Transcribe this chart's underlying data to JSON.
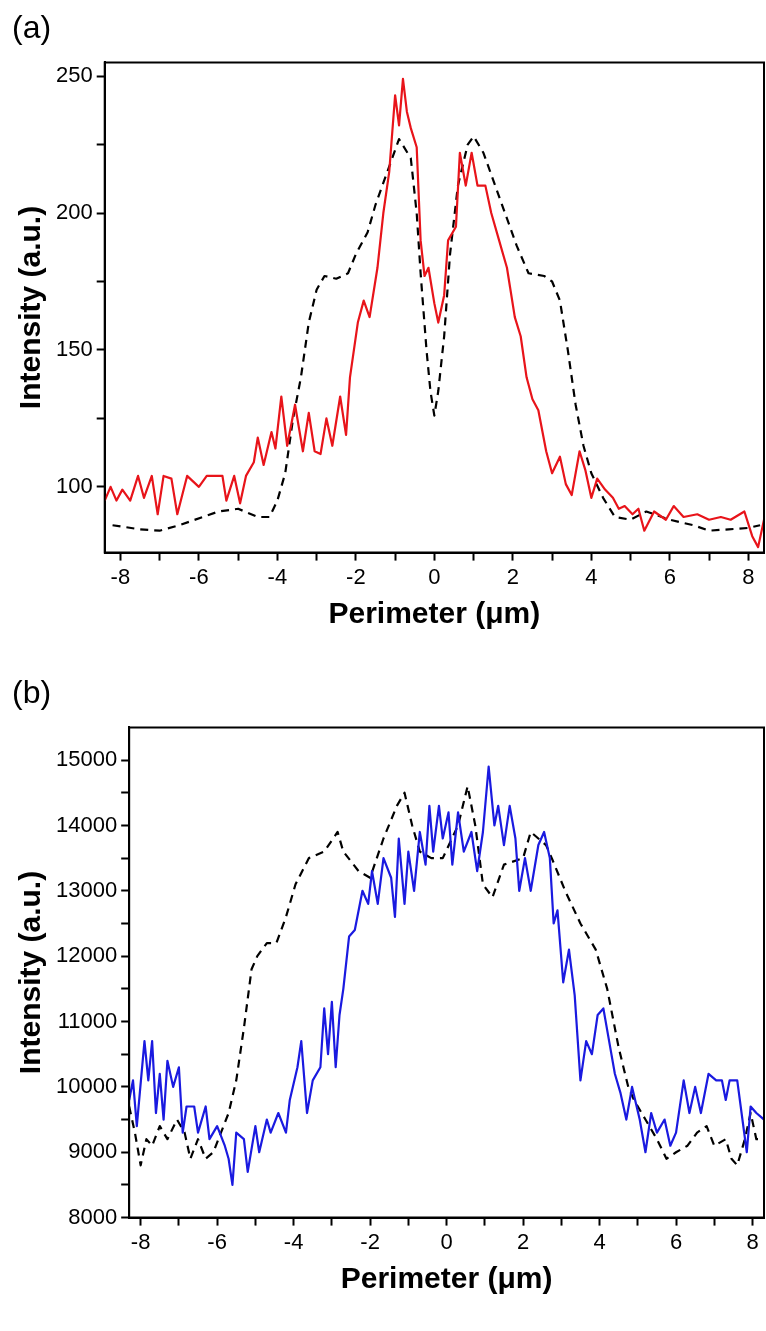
{
  "chart_data": [
    {
      "type": "line",
      "title": "(a)",
      "xlabel": "Perimeter (μm)",
      "ylabel": "Intensity (a.u.)",
      "xlim": [
        -8.4,
        8.4
      ],
      "ylim": [
        76,
        255
      ],
      "xticks": [
        -8,
        {
          "value": -7,
          "label": null
        },
        -6,
        {
          "value": -5,
          "label": null
        },
        -4,
        {
          "value": -3,
          "label": null
        },
        -2,
        {
          "value": -1,
          "label": null
        },
        0,
        {
          "value": 1,
          "label": null
        },
        2,
        {
          "value": 3,
          "label": null
        },
        4,
        {
          "value": 5,
          "label": null
        },
        6,
        {
          "value": 7,
          "label": null
        },
        8
      ],
      "yticks": [
        100,
        {
          "value": 125,
          "label": null
        },
        150,
        {
          "value": 175,
          "label": null
        },
        200,
        {
          "value": 225,
          "label": null
        },
        250
      ],
      "grid": false,
      "legend": false,
      "marker": "none",
      "series": [
        {
          "color": "#e8141a",
          "line_style": "solid",
          "x": [
            -8.4,
            -8.25,
            -8.1,
            -7.95,
            -7.75,
            -7.55,
            -7.4,
            -7.2,
            -7.05,
            -6.9,
            -6.7,
            -6.55,
            -6.3,
            -6.0,
            -5.8,
            -5.4,
            -5.3,
            -5.1,
            -4.95,
            -4.8,
            -4.6,
            -4.5,
            -4.35,
            -4.15,
            -4.05,
            -3.9,
            -3.75,
            -3.55,
            -3.35,
            -3.2,
            -3.05,
            -2.9,
            -2.75,
            -2.6,
            -2.4,
            -2.25,
            -2.15,
            -1.95,
            -1.8,
            -1.65,
            -1.45,
            -1.3,
            -1.15,
            -1.0,
            -0.9,
            -0.8,
            -0.7,
            -0.6,
            -0.45,
            -0.35,
            -0.25,
            -0.15,
            0.0,
            0.1,
            0.25,
            0.35,
            0.55,
            0.65,
            0.8,
            0.95,
            1.1,
            1.3,
            1.45,
            1.65,
            1.85,
            2.05,
            2.2,
            2.35,
            2.5,
            2.65,
            2.85,
            3.0,
            3.2,
            3.35,
            3.5,
            3.7,
            3.85,
            4.0,
            4.15,
            4.35,
            4.55,
            4.7,
            4.85,
            5.05,
            5.2,
            5.35,
            5.6,
            5.9,
            6.1,
            6.35,
            6.7,
            7.0,
            7.3,
            7.55,
            7.9,
            8.1,
            8.25,
            8.4
          ],
          "values": [
            95,
            100,
            95,
            99,
            95,
            104,
            96,
            104,
            90,
            104,
            103,
            90,
            104,
            100,
            104,
            104,
            95,
            104,
            94,
            104,
            109,
            118,
            108,
            120,
            114,
            133,
            115,
            130,
            113,
            127,
            113,
            112,
            125,
            115,
            133,
            119,
            140,
            160,
            168,
            162,
            180,
            200,
            215,
            243,
            232,
            249,
            237,
            231,
            224,
            190,
            177,
            180,
            167,
            160,
            170,
            190,
            195,
            222,
            210,
            222,
            210,
            210,
            200,
            190,
            180,
            162,
            155,
            140,
            132,
            128,
            113,
            105,
            111,
            101,
            97,
            113,
            106,
            96,
            103,
            99,
            96,
            92,
            93,
            90,
            92,
            84,
            91,
            88,
            93,
            89,
            90,
            88,
            89,
            88,
            91,
            82,
            78,
            88
          ]
        },
        {
          "color": "#000000",
          "line_style": "dashed",
          "x": [
            -8.2,
            -7.5,
            -7.0,
            -6.5,
            -5.5,
            -5.0,
            -4.5,
            -4.2,
            -4.0,
            -3.8,
            -3.6,
            -3.4,
            -3.2,
            -3.0,
            -2.8,
            -2.5,
            -2.2,
            -2.0,
            -1.7,
            -1.5,
            -1.2,
            -0.9,
            -0.6,
            -0.45,
            -0.35,
            -0.2,
            -0.1,
            0.0,
            0.1,
            0.25,
            0.4,
            0.6,
            0.85,
            1.0,
            1.25,
            1.5,
            1.8,
            2.1,
            2.4,
            2.8,
            3.0,
            3.2,
            3.4,
            3.6,
            3.8,
            4.0,
            4.3,
            4.6,
            5.0,
            5.4,
            6.0,
            6.6,
            7.0,
            7.5,
            8.0,
            8.3
          ],
          "values": [
            86,
            84.5,
            84,
            86,
            91,
            92,
            89,
            89,
            95,
            105,
            125,
            140,
            160,
            172,
            177,
            176,
            178,
            185,
            193,
            203,
            215,
            227,
            220,
            200,
            178,
            150,
            135,
            126,
            135,
            155,
            185,
            210,
            225,
            228,
            222,
            212,
            200,
            188,
            178,
            177,
            175,
            168,
            150,
            130,
            115,
            105,
            96,
            89,
            88,
            91,
            88,
            86,
            84,
            84.5,
            85,
            86
          ]
        }
      ]
    },
    {
      "type": "line",
      "title": "(b)",
      "xlabel": "Perimeter (μm)",
      "ylabel": "Intensity (a.u.)",
      "xlim": [
        -8.3,
        8.3
      ],
      "ylim": [
        8000,
        15500
      ],
      "xticks": [
        -8,
        {
          "value": -7,
          "label": null
        },
        -6,
        {
          "value": -5,
          "label": null
        },
        -4,
        {
          "value": -3,
          "label": null
        },
        -2,
        {
          "value": -1,
          "label": null
        },
        0,
        {
          "value": 1,
          "label": null
        },
        2,
        {
          "value": 3,
          "label": null
        },
        4,
        {
          "value": 5,
          "label": null
        },
        6,
        {
          "value": 7,
          "label": null
        },
        8
      ],
      "yticks": [
        8000,
        {
          "value": 8500,
          "label": null
        },
        9000,
        {
          "value": 9500,
          "label": null
        },
        10000,
        {
          "value": 10500,
          "label": null
        },
        11000,
        {
          "value": 11500,
          "label": null
        },
        12000,
        {
          "value": 12500,
          "label": null
        },
        13000,
        {
          "value": 13500,
          "label": null
        },
        14000,
        {
          "value": 14500,
          "label": null
        },
        15000
      ],
      "grid": false,
      "legend": false,
      "marker": "none",
      "series": [
        {
          "color": "#1a1ae0",
          "line_style": "solid",
          "x": [
            -8.3,
            -8.2,
            -8.1,
            -7.9,
            -7.8,
            -7.7,
            -7.6,
            -7.5,
            -7.4,
            -7.3,
            -7.15,
            -7.0,
            -6.9,
            -6.8,
            -6.6,
            -6.5,
            -6.3,
            -6.2,
            -6.0,
            -5.8,
            -5.7,
            -5.6,
            -5.5,
            -5.3,
            -5.2,
            -5.0,
            -4.9,
            -4.7,
            -4.6,
            -4.4,
            -4.2,
            -4.1,
            -3.9,
            -3.8,
            -3.65,
            -3.5,
            -3.3,
            -3.2,
            -3.1,
            -3.0,
            -2.9,
            -2.8,
            -2.7,
            -2.55,
            -2.4,
            -2.2,
            -2.05,
            -1.95,
            -1.8,
            -1.65,
            -1.45,
            -1.35,
            -1.25,
            -1.1,
            -1.0,
            -0.85,
            -0.7,
            -0.55,
            -0.45,
            -0.35,
            -0.2,
            -0.1,
            0.05,
            0.15,
            0.3,
            0.45,
            0.65,
            0.8,
            0.95,
            1.1,
            1.25,
            1.35,
            1.5,
            1.65,
            1.8,
            1.9,
            2.05,
            2.2,
            2.4,
            2.55,
            2.7,
            2.8,
            2.9,
            3.05,
            3.2,
            3.35,
            3.5,
            3.65,
            3.8,
            3.95,
            4.1,
            4.25,
            4.4,
            4.55,
            4.7,
            4.85,
            5.05,
            5.2,
            5.35,
            5.5,
            5.7,
            5.85,
            6.0,
            6.2,
            6.35,
            6.5,
            6.65,
            6.85,
            7.05,
            7.2,
            7.3,
            7.4,
            7.6,
            7.85,
            7.95,
            8.1,
            8.3
          ],
          "values": [
            9800,
            10100,
            9400,
            10700,
            10100,
            10700,
            9600,
            10200,
            9500,
            10400,
            10000,
            10300,
            9300,
            9700,
            9700,
            9300,
            9700,
            9200,
            9400,
            9100,
            8900,
            8500,
            9300,
            9200,
            8700,
            9400,
            9000,
            9500,
            9300,
            9600,
            9300,
            9800,
            10300,
            10700,
            9600,
            10100,
            10300,
            11200,
            10500,
            11300,
            10300,
            11100,
            11500,
            12300,
            12400,
            13000,
            12800,
            13300,
            12800,
            13500,
            13200,
            12600,
            13800,
            12800,
            13600,
            13000,
            13900,
            13400,
            14300,
            13600,
            14300,
            13800,
            14200,
            13400,
            14200,
            13600,
            13900,
            13300,
            13900,
            14900,
            14000,
            14300,
            13700,
            14300,
            13800,
            13000,
            13500,
            13000,
            13700,
            13900,
            13500,
            12500,
            12700,
            11600,
            12100,
            11400,
            10100,
            10700,
            10500,
            11100,
            11200,
            10700,
            10200,
            9900,
            9500,
            10000,
            9500,
            9000,
            9600,
            9300,
            9500,
            9100,
            9300,
            10100,
            9600,
            10000,
            9600,
            10200,
            10100,
            10100,
            9800,
            10100,
            10100,
            9000,
            9700,
            9600,
            9500
          ]
        },
        {
          "color": "#000000",
          "line_style": "dashed",
          "x": [
            -8.3,
            -8.15,
            -8.0,
            -7.85,
            -7.7,
            -7.5,
            -7.3,
            -7.05,
            -6.85,
            -6.7,
            -6.5,
            -6.3,
            -6.1,
            -5.9,
            -5.7,
            -5.5,
            -5.3,
            -5.1,
            -4.95,
            -4.7,
            -4.45,
            -4.2,
            -3.95,
            -3.6,
            -3.2,
            -2.85,
            -2.7,
            -2.3,
            -2.0,
            -1.65,
            -1.3,
            -1.1,
            -0.9,
            -0.7,
            -0.4,
            -0.1,
            0.3,
            0.55,
            0.75,
            0.95,
            1.2,
            1.5,
            2.0,
            2.2,
            2.6,
            2.75,
            3.1,
            3.5,
            3.9,
            4.2,
            4.5,
            4.75,
            4.9,
            5.2,
            5.5,
            5.75,
            6.0,
            6.3,
            6.55,
            6.8,
            7.0,
            7.3,
            7.45,
            7.6,
            7.8,
            7.95,
            8.1,
            8.3
          ],
          "values": [
            9700,
            9300,
            8800,
            9200,
            9100,
            9400,
            9200,
            9500,
            9300,
            8900,
            9200,
            8900,
            9000,
            9300,
            9600,
            10100,
            10900,
            11800,
            12000,
            12200,
            12200,
            12600,
            13100,
            13500,
            13600,
            13900,
            13600,
            13300,
            13200,
            13800,
            14300,
            14500,
            14000,
            13600,
            13500,
            13500,
            14000,
            14600,
            14000,
            13100,
            12900,
            13400,
            13500,
            13900,
            13700,
            13500,
            13000,
            12500,
            12100,
            11500,
            10600,
            10000,
            9800,
            9500,
            9200,
            8900,
            9000,
            9100,
            9300,
            9400,
            9100,
            9200,
            8900,
            8800,
            9200,
            9600,
            9200,
            9200
          ]
        }
      ]
    }
  ]
}
